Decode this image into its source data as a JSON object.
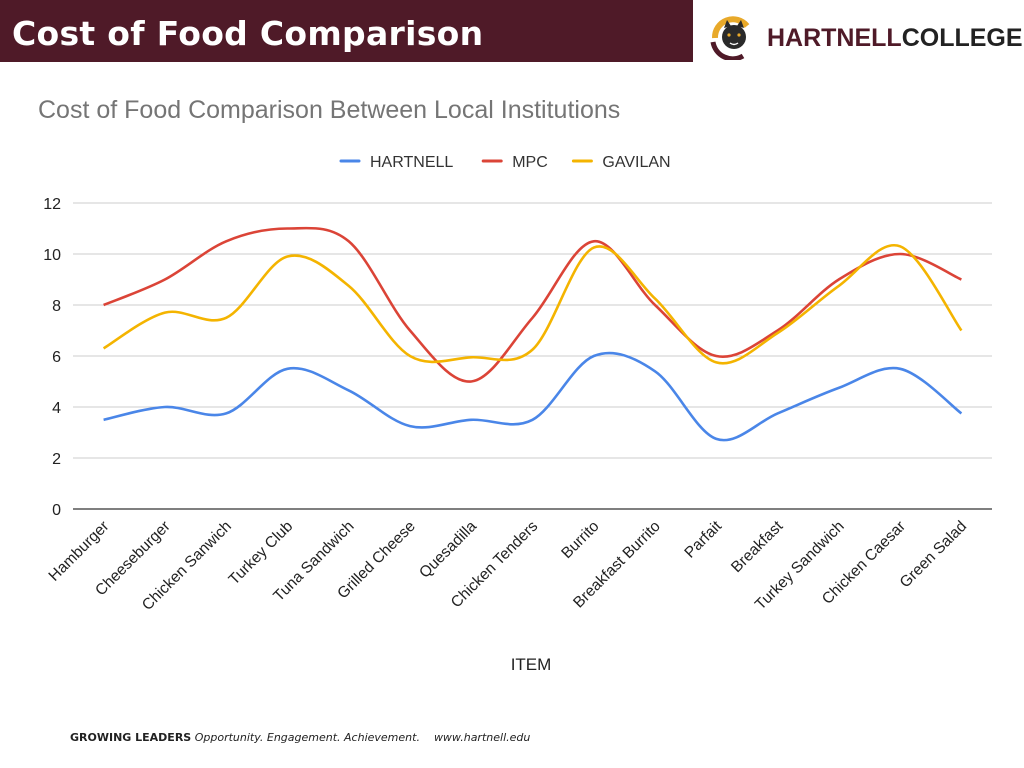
{
  "header": {
    "title": "Cost of Food Comparison"
  },
  "logo": {
    "part1": "HARTNELL",
    "part2": "COLLEGE",
    "icon": "panther-mascot-icon",
    "accent": "#e8a92a"
  },
  "colors": {
    "header_bg": "#4f1a28"
  },
  "footer": {
    "bold": "GROWING LEADERS",
    "tagline": "Opportunity. Engagement. Achievement.",
    "url": "www.hartnell.edu"
  },
  "chart_data": {
    "type": "line",
    "title": "Cost of Food Comparison Between Local Institutions",
    "xlabel": "ITEM",
    "ylabel": "",
    "ylim": [
      0,
      12
    ],
    "yticks": [
      0,
      2,
      4,
      6,
      8,
      10,
      12
    ],
    "grid": true,
    "legend_position": "top-center",
    "categories": [
      "Hamburger",
      "Cheeseburger",
      "Chicken Sanwich",
      "Turkey Club",
      "Tuna Sandwich",
      "Grilled Cheese",
      "Quesadilla",
      "Chicken Tenders",
      "Burrito",
      "Breakfast Burrito",
      "Parfait",
      "Breakfast",
      "Turkey Sandwich",
      "Chicken Caesar",
      "Green Salad"
    ],
    "series": [
      {
        "name": "HARTNELL",
        "color": "#4a86e8",
        "values": [
          3.5,
          4.0,
          3.75,
          5.5,
          4.65,
          3.25,
          3.5,
          3.5,
          6.0,
          5.4,
          2.75,
          3.75,
          4.75,
          5.5,
          3.75
        ]
      },
      {
        "name": "MPC",
        "color": "#db4437",
        "values": [
          8.0,
          9.0,
          10.5,
          11.0,
          10.5,
          7.0,
          5.0,
          7.5,
          10.5,
          8.0,
          6.0,
          7.0,
          9.0,
          10.0,
          9.0
        ]
      },
      {
        "name": "GAVILAN",
        "color": "#f4b400",
        "values": [
          6.3,
          7.7,
          7.5,
          9.9,
          8.75,
          6.0,
          5.95,
          6.25,
          10.25,
          8.25,
          5.75,
          6.9,
          8.75,
          10.3,
          7.0
        ]
      }
    ]
  }
}
